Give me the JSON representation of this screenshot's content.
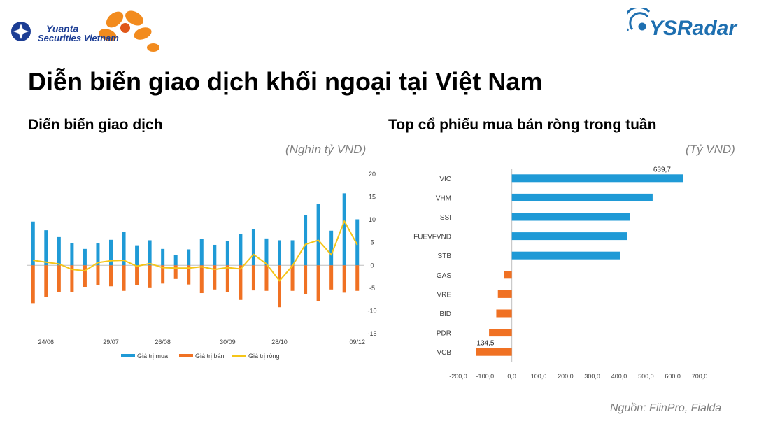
{
  "header": {
    "brand_left": "Yuanta Securities Vietnam",
    "brand_left_line1": "Yuanta",
    "brand_left_line2": "Securities Vietnam",
    "brand_right": "YSRadar",
    "title": "Diễn biến giao dịch khối ngoại tại Việt Nam"
  },
  "left": {
    "title": "Diến biến giao dịch",
    "unit": "(Nghìn tỷ VND)"
  },
  "right": {
    "title": "Top cổ phiếu mua bán ròng trong tuần",
    "unit": "(Tỷ VND)"
  },
  "footer": {
    "source": "Nguồn: FiinPro, Fialda"
  },
  "colors": {
    "buy": "#1f9ad6",
    "sell": "#f07123",
    "net": "#f5c518",
    "axis": "#bfbfbf"
  },
  "chart_data": [
    {
      "type": "bar",
      "x_tick_labels": [
        "24/06",
        "29/07",
        "26/08",
        "30/09",
        "28/10",
        "09/12"
      ],
      "x_tick_positions": [
        1,
        6,
        10,
        15,
        19,
        25
      ],
      "ylim": [
        -15,
        20
      ],
      "yticks": [
        20,
        15,
        10,
        5,
        0,
        -5,
        -10,
        -15
      ],
      "legend_position": "bottom",
      "series": [
        {
          "name": "Giá trị mua",
          "type": "bar",
          "values": [
            9.6,
            7.7,
            6.2,
            4.9,
            3.6,
            4.8,
            5.6,
            7.4,
            4.4,
            5.5,
            3.6,
            2.2,
            3.5,
            5.8,
            4.5,
            5.3,
            6.9,
            7.9,
            5.9,
            5.5,
            5.5,
            11.0,
            13.4,
            7.6,
            15.8,
            10.1
          ]
        },
        {
          "name": "Giá trị bán",
          "type": "bar",
          "values": [
            -8.3,
            -7.0,
            -5.9,
            -5.8,
            -4.8,
            -4.3,
            -4.6,
            -5.6,
            -4.4,
            -5.0,
            -4.0,
            -3.0,
            -4.2,
            -6.1,
            -5.3,
            -5.9,
            -7.6,
            -5.5,
            -5.6,
            -9.2,
            -5.6,
            -6.4,
            -7.8,
            -5.3,
            -6.0,
            -5.6
          ]
        },
        {
          "name": "Giá trị ròng",
          "type": "line",
          "values": [
            1.1,
            0.7,
            0.3,
            -0.9,
            -1.2,
            0.6,
            1.0,
            1.1,
            -0.2,
            0.4,
            -0.5,
            -0.6,
            -0.6,
            -0.3,
            -0.9,
            -0.5,
            -0.8,
            2.4,
            0.3,
            -3.4,
            -0.1,
            4.6,
            5.5,
            2.3,
            9.7,
            4.5
          ]
        }
      ]
    },
    {
      "type": "bar",
      "orientation": "horizontal",
      "categories": [
        "VIC",
        "VHM",
        "SSI",
        "FUEVFVND",
        "STB",
        "GAS",
        "VRE",
        "BID",
        "PDR",
        "VCB"
      ],
      "values": [
        639.7,
        525,
        440,
        430,
        405,
        -30,
        -52,
        -58,
        -85,
        -134.5
      ],
      "data_labels": {
        "VIC": "639,7",
        "VCB": "-134,5"
      },
      "xlim": [
        -200,
        700
      ],
      "xticks": [
        -200,
        -100,
        0,
        100,
        200,
        300,
        400,
        500,
        600,
        700
      ],
      "xtick_labels": [
        "-200,0",
        "-100,0",
        "0,0",
        "100,0",
        "200,0",
        "300,0",
        "400,0",
        "500,0",
        "600,0",
        "700,0"
      ],
      "positive_color": "#1f9ad6",
      "negative_color": "#f07123"
    }
  ]
}
